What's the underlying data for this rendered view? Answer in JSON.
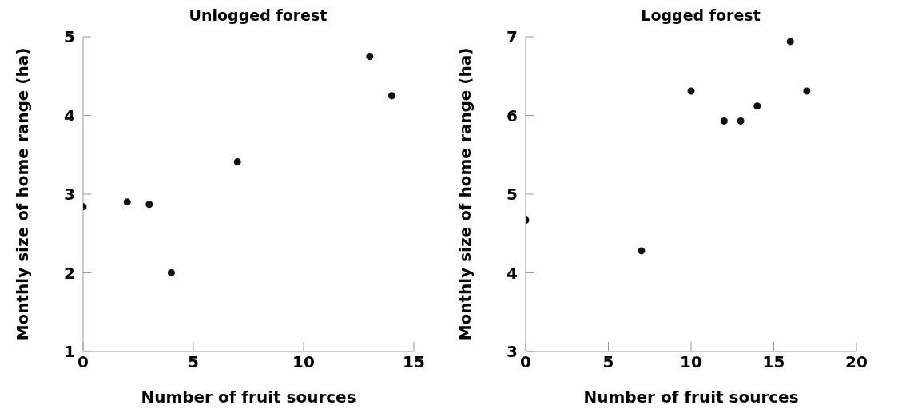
{
  "chart_data": [
    {
      "type": "scatter",
      "title": "Unlogged forest",
      "xlabel": "Number of fruit sources",
      "ylabel": "Monthly size of home range (ha)",
      "xlim": [
        0,
        15
      ],
      "xticks": [
        0,
        5,
        10,
        15
      ],
      "ylim": [
        1,
        5
      ],
      "yticks": [
        1,
        2,
        3,
        4,
        5
      ],
      "marker": "circle",
      "series": [
        {
          "color": "#111111",
          "x": [
            0,
            2,
            3,
            4,
            7,
            13,
            14
          ],
          "values": [
            2.84,
            2.9,
            2.87,
            2.0,
            3.41,
            4.75,
            4.25
          ]
        }
      ]
    },
    {
      "type": "scatter",
      "title": "Logged forest",
      "xlabel": "Number of fruit sources",
      "ylabel": "Monthly size of home range (ha)",
      "xlim": [
        0,
        20
      ],
      "xticks": [
        0,
        5,
        10,
        15,
        20
      ],
      "ylim": [
        3,
        7
      ],
      "yticks": [
        3,
        4,
        5,
        6,
        7
      ],
      "marker": "circle",
      "series": [
        {
          "color": "#111111",
          "x": [
            0,
            7,
            10,
            12,
            13,
            14,
            16,
            17
          ],
          "values": [
            4.67,
            4.28,
            6.31,
            5.93,
            5.93,
            6.12,
            6.94,
            6.31
          ]
        }
      ]
    }
  ]
}
